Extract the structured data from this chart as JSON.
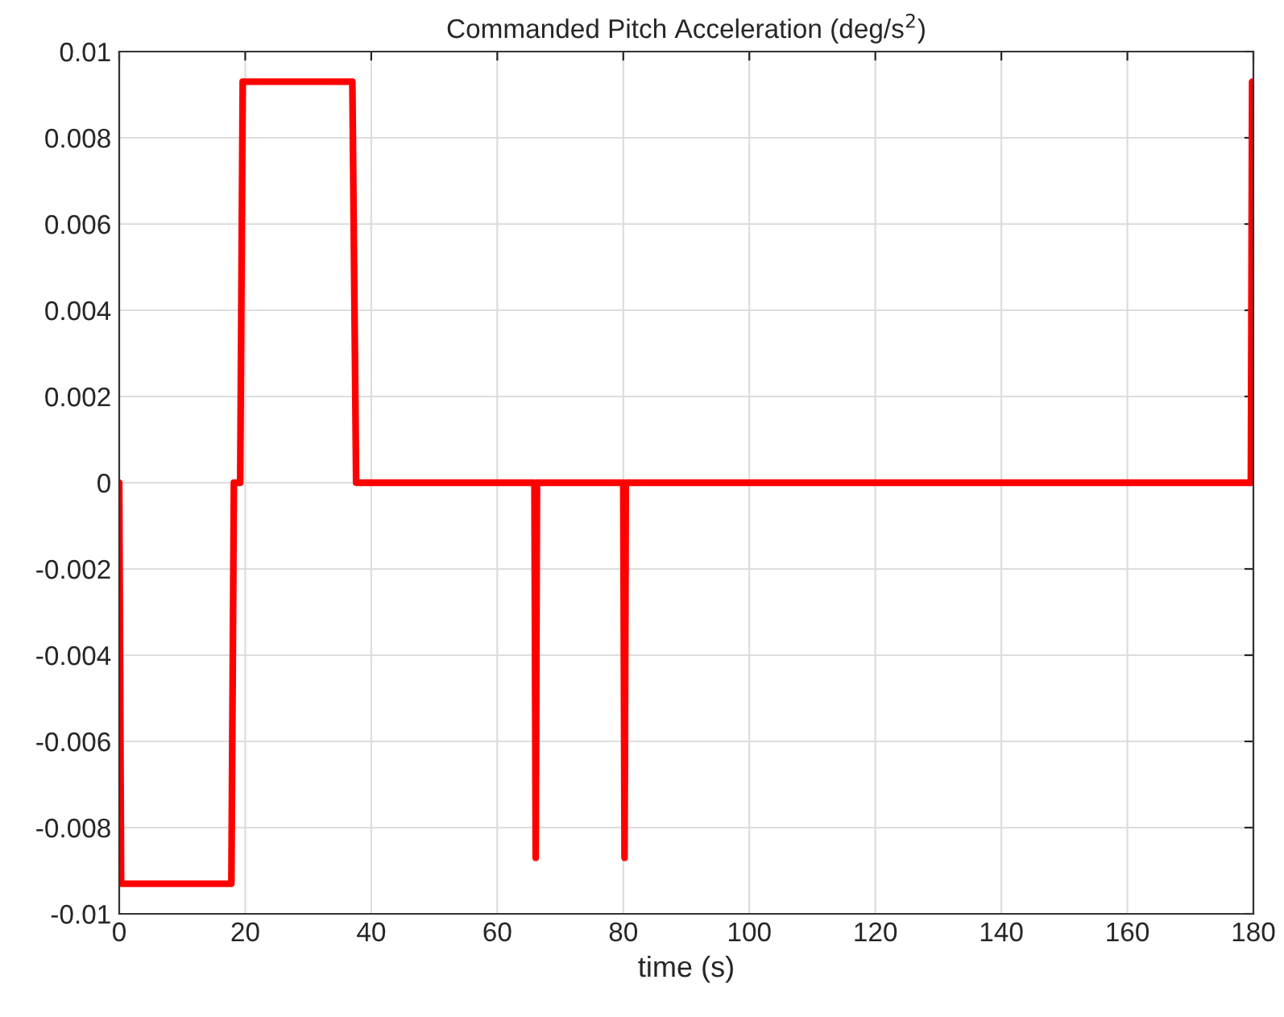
{
  "chart_data": {
    "type": "line",
    "title": "Commanded Pitch Acceleration (deg/s$^{2}$)",
    "xlabel": "time (s)",
    "series": [
      {
        "color": "#ff0000",
        "x": [
          0,
          0.3,
          17.8,
          18.2,
          19.2,
          19.6,
          37,
          37.6,
          65.9,
          66.1,
          66.3,
          80.0,
          80.2,
          80.4,
          179.6,
          179.8
        ],
        "values": [
          0,
          -0.0093,
          -0.0093,
          0,
          0,
          0.0093,
          0.0093,
          0,
          0,
          -0.0087,
          0,
          0,
          -0.0087,
          0,
          0,
          0.0093
        ]
      }
    ],
    "xlim": [
      0,
      180
    ],
    "xticks": [
      0,
      20,
      40,
      60,
      80,
      100,
      120,
      140,
      160,
      180
    ],
    "ylim": [
      -0.01,
      0.01
    ],
    "yticks": [
      -0.01,
      -0.008,
      -0.006,
      -0.004,
      -0.002,
      0,
      0.002,
      0.004,
      0.006,
      0.008,
      0.01
    ],
    "grid": true,
    "line_style": "solid"
  }
}
